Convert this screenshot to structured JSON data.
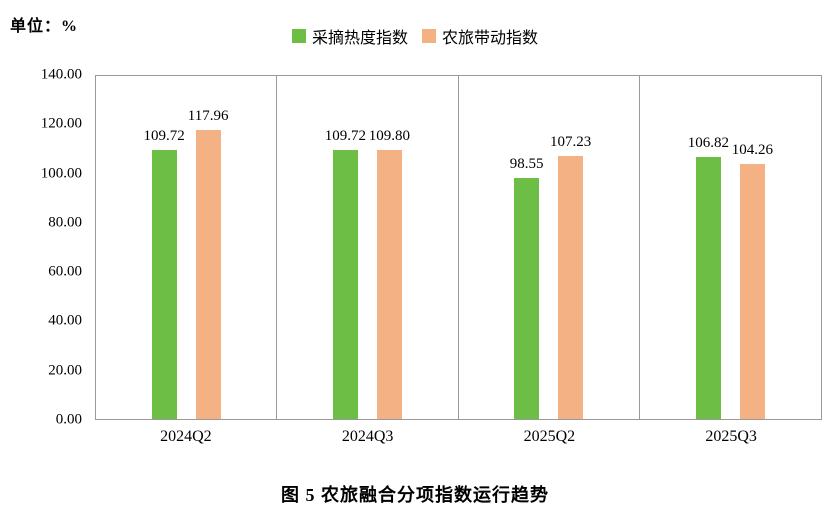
{
  "chart_data": {
    "type": "bar",
    "title": "图 5  农旅融合分项指数运行趋势",
    "unit_label": "单位：%",
    "categories": [
      "2024Q2",
      "2024Q3",
      "2025Q2",
      "2025Q3"
    ],
    "series": [
      {
        "name": "采摘热度指数",
        "color": "#6CBE45",
        "values": [
          109.72,
          109.72,
          98.55,
          106.82
        ]
      },
      {
        "name": "农旅带动指数",
        "color": "#F4B183",
        "values": [
          117.96,
          109.8,
          107.23,
          104.26
        ]
      }
    ],
    "ylim": [
      0,
      140
    ],
    "ytick_step": 20,
    "yticks": [
      "140.00",
      "120.00",
      "100.00",
      "80.00",
      "60.00",
      "40.00",
      "20.00",
      "0.00"
    ],
    "grid": "vertical-category-separators",
    "legend_position": "top-center",
    "value_label_decimals": 2
  }
}
